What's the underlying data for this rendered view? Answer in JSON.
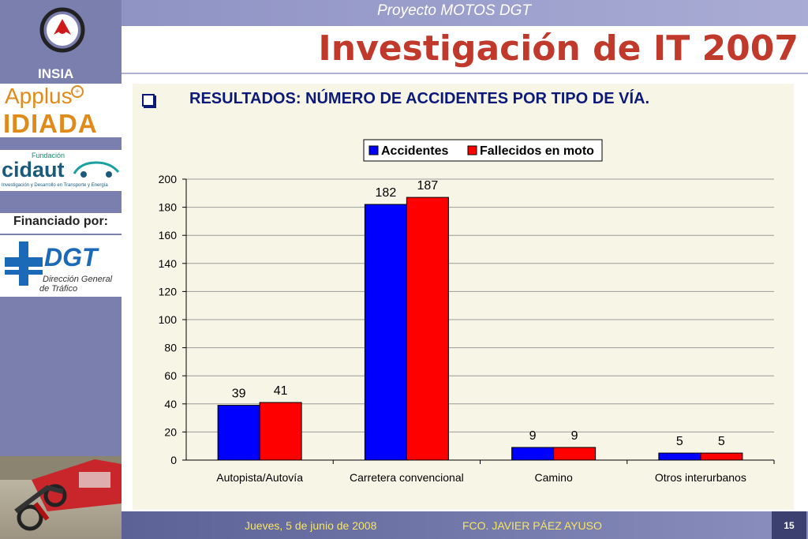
{
  "header": {
    "project": "Proyecto MOTOS DGT",
    "title": "Investigación de IT 2007",
    "subtitle": "RESULTADOS: NÚMERO DE ACCIDENTES POR TIPO DE VÍA."
  },
  "sidebar": {
    "insia": "INSIA",
    "applus": "Applus",
    "idiada": "IDIADA",
    "cidaut_fundacion": "Fundación",
    "cidaut": "cidaut",
    "cidaut_tagline": "Investigación y Desarrollo en Transporte y Energía",
    "financiado": "Financiado por:",
    "dgt": "DGT",
    "dgt_line1": "Dirección General",
    "dgt_line2": "de Tráfico"
  },
  "footer": {
    "date": "Jueves, 5 de junio de 2008",
    "author": "FCO. JAVIER PÁEZ AYUSO",
    "page": "15"
  },
  "chart_data": {
    "type": "bar",
    "categories": [
      "Autopista/Autovía",
      "Carretera convencional",
      "Camino",
      "Otros interurbanos"
    ],
    "series": [
      {
        "name": "Accidentes",
        "values": [
          39,
          182,
          9,
          5
        ],
        "color": "#0000ff"
      },
      {
        "name": "Fallecidos en moto",
        "values": [
          41,
          187,
          9,
          5
        ],
        "color": "#ff0000"
      }
    ],
    "yticks": [
      0,
      20,
      40,
      60,
      80,
      100,
      120,
      140,
      160,
      180,
      200
    ],
    "ylim": [
      0,
      200
    ],
    "grid": true,
    "legend": "top-center"
  }
}
